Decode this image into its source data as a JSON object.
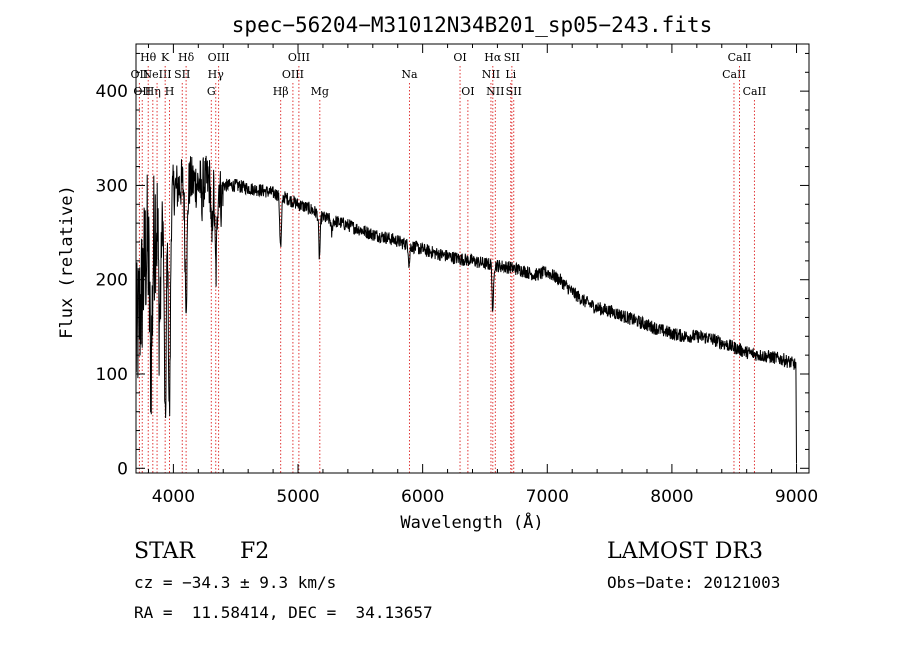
{
  "chart_data": {
    "type": "line",
    "title": "spec−56204−M31012N34B201_sp05−243.fits",
    "xlabel": "Wavelength (Å)",
    "ylabel": "Flux (relative)",
    "xlim": [
      3700,
      9100
    ],
    "ylim": [
      -5,
      450
    ],
    "xticks": [
      "4000",
      "5000",
      "6000",
      "7000",
      "8000",
      "9000"
    ],
    "yticks": [
      "0",
      "100",
      "200",
      "300",
      "400"
    ],
    "xtick_values": [
      4000,
      5000,
      6000,
      7000,
      8000,
      9000
    ],
    "ytick_values": [
      0,
      100,
      200,
      300,
      400
    ],
    "x_minor_step": 200,
    "y_minor_step": 20,
    "series": [
      {
        "name": "spectrum",
        "continuum": [
          [
            3700,
            130
          ],
          [
            3750,
            190
          ],
          [
            3800,
            255
          ],
          [
            3850,
            265
          ],
          [
            3900,
            275
          ],
          [
            3950,
            285
          ],
          [
            4000,
            295
          ],
          [
            4100,
            305
          ],
          [
            4200,
            302
          ],
          [
            4300,
            305
          ],
          [
            4400,
            300
          ],
          [
            4500,
            300
          ],
          [
            4600,
            297
          ],
          [
            4700,
            295
          ],
          [
            4800,
            292
          ],
          [
            4900,
            287
          ],
          [
            5000,
            280
          ],
          [
            5100,
            275
          ],
          [
            5200,
            266
          ],
          [
            5300,
            262
          ],
          [
            5400,
            258
          ],
          [
            5500,
            253
          ],
          [
            5600,
            248
          ],
          [
            5700,
            245
          ],
          [
            5800,
            241
          ],
          [
            5900,
            236
          ],
          [
            6000,
            232
          ],
          [
            6100,
            228
          ],
          [
            6200,
            225
          ],
          [
            6300,
            222
          ],
          [
            6400,
            220
          ],
          [
            6500,
            217
          ],
          [
            6600,
            215
          ],
          [
            6700,
            213
          ],
          [
            6800,
            210
          ],
          [
            6900,
            205
          ],
          [
            7000,
            208
          ],
          [
            7100,
            200
          ],
          [
            7200,
            187
          ],
          [
            7300,
            177
          ],
          [
            7400,
            170
          ],
          [
            7500,
            167
          ],
          [
            7600,
            162
          ],
          [
            7700,
            157
          ],
          [
            7800,
            152
          ],
          [
            7900,
            147
          ],
          [
            8000,
            143
          ],
          [
            8100,
            140
          ],
          [
            8200,
            140
          ],
          [
            8300,
            138
          ],
          [
            8400,
            133
          ],
          [
            8500,
            128
          ],
          [
            8600,
            123
          ],
          [
            8700,
            120
          ],
          [
            8800,
            118
          ],
          [
            8900,
            115
          ],
          [
            8990,
            110
          ]
        ],
        "absorption": [
          [
            3820,
            140,
            12
          ],
          [
            3890,
            110,
            10
          ],
          [
            3935,
            240,
            8
          ],
          [
            3968,
            230,
            8
          ],
          [
            4102,
            120,
            9
          ],
          [
            4227,
            20,
            4
          ],
          [
            4308,
            70,
            6
          ],
          [
            4341,
            95,
            8
          ],
          [
            4384,
            20,
            5
          ],
          [
            4861,
            55,
            7
          ],
          [
            5172,
            45,
            6
          ],
          [
            5270,
            15,
            5
          ],
          [
            5892,
            20,
            5
          ],
          [
            6563,
            55,
            5
          ]
        ],
        "noise": [
          {
            "from": 3700,
            "to": 3900,
            "amp": 80
          },
          {
            "from": 3900,
            "to": 4400,
            "amp": 28
          },
          {
            "from": 4400,
            "to": 9000,
            "amp": 7
          }
        ],
        "end_drop": [
          [
            8995,
            110
          ],
          [
            9000,
            5
          ]
        ]
      }
    ],
    "line_markers": [
      {
        "wavelength": 3727,
        "label": "OII",
        "row": 2
      },
      {
        "wavelength": 3750,
        "label": "OII",
        "row": 3
      },
      {
        "wavelength": 3798,
        "label": "Hθ",
        "row": 1
      },
      {
        "wavelength": 3835,
        "label": "Hη",
        "row": 3
      },
      {
        "wavelength": 3869,
        "label": "NeIII",
        "row": 2
      },
      {
        "wavelength": 3934,
        "label": "K",
        "row": 1
      },
      {
        "wavelength": 3969,
        "label": "H",
        "row": 3
      },
      {
        "wavelength": 4071,
        "label": "SII",
        "row": 2
      },
      {
        "wavelength": 4102,
        "label": "Hδ",
        "row": 1
      },
      {
        "wavelength": 4304,
        "label": "G",
        "row": 3
      },
      {
        "wavelength": 4340,
        "label": "Hγ",
        "row": 2
      },
      {
        "wavelength": 4363,
        "label": "OIII",
        "row": 1
      },
      {
        "wavelength": 4861,
        "label": "Hβ",
        "row": 3
      },
      {
        "wavelength": 4959,
        "label": "OIII",
        "row": 2
      },
      {
        "wavelength": 5007,
        "label": "OIII",
        "row": 1
      },
      {
        "wavelength": 5175,
        "label": "Mg",
        "row": 3
      },
      {
        "wavelength": 5894,
        "label": "Na",
        "row": 2
      },
      {
        "wavelength": 6300,
        "label": "OI",
        "row": 1
      },
      {
        "wavelength": 6363,
        "label": "OI",
        "row": 3
      },
      {
        "wavelength": 6548,
        "label": "NII",
        "row": 2
      },
      {
        "wavelength": 6563,
        "label": "Hα",
        "row": 1
      },
      {
        "wavelength": 6583,
        "label": "NII",
        "row": 3
      },
      {
        "wavelength": 6707,
        "label": "Li",
        "row": 2
      },
      {
        "wavelength": 6716,
        "label": "SII",
        "row": 1
      },
      {
        "wavelength": 6731,
        "label": "SII",
        "row": 3
      },
      {
        "wavelength": 8498,
        "label": "CaII",
        "row": 2
      },
      {
        "wavelength": 8542,
        "label": "CaII",
        "row": 1
      },
      {
        "wavelength": 8662,
        "label": "CaII",
        "row": 3
      }
    ]
  },
  "info": {
    "object_class": "STAR",
    "subclass": "F2",
    "survey": "LAMOST DR3",
    "redshift_text": "cz = −34.3 ± 9.3 km/s",
    "obs_date_text": "Obs−Date: 20121003",
    "coords_text": "RA =  11.58414, DEC =  34.13657"
  }
}
